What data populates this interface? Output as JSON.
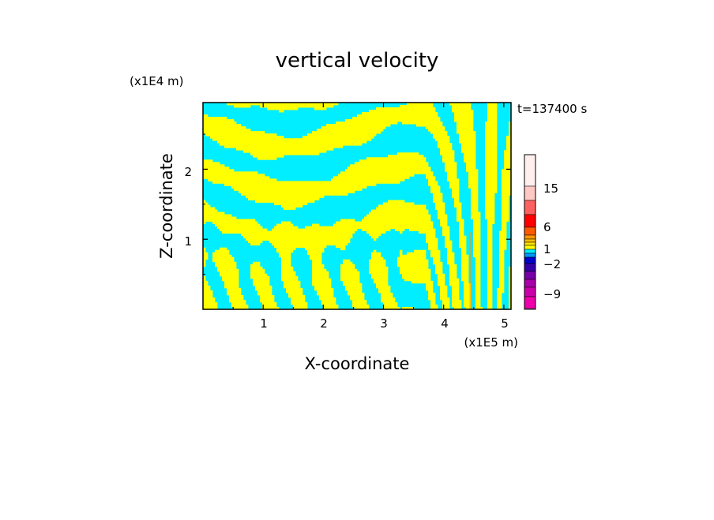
{
  "chart_data": {
    "type": "heatmap",
    "title": "vertical velocity",
    "xlabel": "X-coordinate",
    "ylabel": "Z-coordinate",
    "x_unit": "(x1E5 m)",
    "y_unit": "(x1E4 m)",
    "time_label": "t=137400 s",
    "xlim": [
      0,
      5.12
    ],
    "ylim": [
      0,
      2.95
    ],
    "x_ticks": [
      1,
      2,
      3,
      4,
      5
    ],
    "y_ticks": [
      1,
      2
    ],
    "colorbar_labels": [
      {
        "value": 15,
        "text": "15"
      },
      {
        "value": 6,
        "text": "6"
      },
      {
        "value": 1,
        "text": "1"
      },
      {
        "value": -2,
        "text": "−2"
      },
      {
        "value": -9,
        "text": "−9"
      }
    ],
    "colors": {
      "positive": "#ffff00",
      "negative": "#00eeff",
      "levels_top_to_bottom": [
        "#fff0ee",
        "#ffc8c4",
        "#ff6060",
        "#ff0000",
        "#ff5a00",
        "#ff9600",
        "#ffbe00",
        "#ffe100",
        "#ffff00",
        "#00eeff",
        "#0096ff",
        "#0000cc",
        "#3300aa",
        "#7700aa",
        "#aa00aa",
        "#cc00aa",
        "#ee00aa"
      ]
    }
  }
}
